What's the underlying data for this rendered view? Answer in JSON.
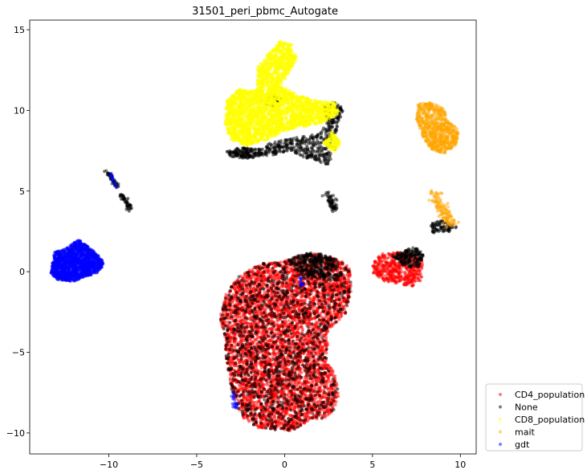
{
  "chart_data": {
    "type": "scatter",
    "title": "31501_peri_pbmc_Autogate",
    "xlabel": "",
    "ylabel": "",
    "xlim": [
      -14.5,
      10.9
    ],
    "ylim": [
      -11.3,
      15.6
    ],
    "xticks": [
      -10,
      -5,
      0,
      5,
      10
    ],
    "yticks": [
      -10,
      -5,
      0,
      5,
      10,
      15
    ],
    "xtick_labels": [
      "−10",
      "−5",
      "0",
      "5",
      "10"
    ],
    "ytick_labels": [
      "−10",
      "−5",
      "0",
      "5",
      "10",
      "15"
    ],
    "grid": false,
    "legend_position": "outside lower right",
    "series": [
      {
        "name": "CD4_population",
        "color": "#ff0000",
        "clusters": [
          {
            "shape": "polygon",
            "n": 5200,
            "poly": [
              [
                -3.7,
                -2.9
              ],
              [
                -3.3,
                -1.3
              ],
              [
                -2.6,
                -0.3
              ],
              [
                -1.4,
                0.5
              ],
              [
                -0.2,
                0.6
              ],
              [
                0.6,
                0.9
              ],
              [
                1.5,
                1.2
              ],
              [
                2.4,
                1.0
              ],
              [
                3.2,
                0.7
              ],
              [
                3.7,
                0.3
              ],
              [
                3.8,
                -1.2
              ],
              [
                3.5,
                -2.6
              ],
              [
                2.5,
                -3.6
              ],
              [
                2.4,
                -5.6
              ],
              [
                2.9,
                -6.4
              ],
              [
                3.1,
                -7.6
              ],
              [
                2.9,
                -8.5
              ],
              [
                2.3,
                -9.1
              ],
              [
                1.4,
                -9.2
              ],
              [
                0.4,
                -9.9
              ],
              [
                -1.5,
                -9.7
              ],
              [
                -2.4,
                -9.1
              ],
              [
                -3.0,
                -7.4
              ],
              [
                -3.3,
                -5.6
              ],
              [
                -3.4,
                -4.0
              ]
            ]
          },
          {
            "shape": "polygon",
            "n": 500,
            "poly": [
              [
                5.0,
                0.5
              ],
              [
                5.5,
                1.1
              ],
              [
                6.5,
                1.2
              ],
              [
                7.5,
                1.0
              ],
              [
                7.9,
                0.6
              ],
              [
                7.8,
                -0.5
              ],
              [
                7.3,
                -0.9
              ],
              [
                6.6,
                -0.8
              ],
              [
                5.7,
                -0.6
              ],
              [
                5.0,
                -0.1
              ]
            ]
          }
        ]
      },
      {
        "name": "None",
        "color": "#000000",
        "clusters": [
          {
            "shape": "polygon",
            "n": 1300,
            "poly": [
              [
                -3.7,
                -2.9
              ],
              [
                -3.3,
                -1.3
              ],
              [
                -2.6,
                -0.3
              ],
              [
                -1.4,
                0.5
              ],
              [
                -0.2,
                0.6
              ],
              [
                0.6,
                0.9
              ],
              [
                1.5,
                1.2
              ],
              [
                2.4,
                1.0
              ],
              [
                3.2,
                0.7
              ],
              [
                3.7,
                0.3
              ],
              [
                3.8,
                -1.2
              ],
              [
                3.5,
                -2.6
              ],
              [
                2.5,
                -3.6
              ],
              [
                2.4,
                -5.6
              ],
              [
                2.9,
                -6.4
              ],
              [
                3.1,
                -7.6
              ],
              [
                2.9,
                -8.5
              ],
              [
                2.3,
                -9.1
              ],
              [
                1.4,
                -9.2
              ],
              [
                0.4,
                -9.9
              ],
              [
                -1.5,
                -9.7
              ],
              [
                -2.4,
                -9.1
              ],
              [
                -3.0,
                -7.4
              ],
              [
                -3.3,
                -5.6
              ],
              [
                -3.4,
                -4.0
              ]
            ]
          },
          {
            "shape": "polygon",
            "n": 300,
            "poly": [
              [
                0.2,
                0.7
              ],
              [
                1.2,
                1.2
              ],
              [
                2.2,
                1.1
              ],
              [
                3.0,
                0.6
              ],
              [
                3.3,
                -0.2
              ],
              [
                2.4,
                -0.5
              ],
              [
                1.0,
                -0.2
              ]
            ]
          },
          {
            "shape": "polygon",
            "n": 180,
            "poly": [
              [
                6.0,
                1.0
              ],
              [
                6.8,
                1.3
              ],
              [
                7.5,
                1.6
              ],
              [
                7.9,
                1.0
              ],
              [
                7.6,
                0.2
              ],
              [
                6.9,
                0.3
              ]
            ]
          },
          {
            "shape": "polygon",
            "n": 380,
            "poly": [
              [
                -0.8,
                8.0
              ],
              [
                0.5,
                8.3
              ],
              [
                2.0,
                8.6
              ],
              [
                2.5,
                9.4
              ],
              [
                3.1,
                9.0
              ],
              [
                2.9,
                7.6
              ],
              [
                2.5,
                6.6
              ],
              [
                1.6,
                6.9
              ],
              [
                0.3,
                7.4
              ],
              [
                -0.9,
                7.1
              ],
              [
                -1.5,
                7.4
              ]
            ]
          },
          {
            "shape": "polygon",
            "n": 160,
            "poly": [
              [
                -3.4,
                7.4
              ],
              [
                -3.0,
                7.1
              ],
              [
                -2.2,
                7.0
              ],
              [
                -1.2,
                7.2
              ],
              [
                -1.4,
                7.6
              ],
              [
                -2.6,
                7.7
              ]
            ]
          },
          {
            "shape": "polygon",
            "n": 120,
            "poly": [
              [
                2.2,
                10.2
              ],
              [
                2.9,
                10.6
              ],
              [
                3.4,
                10.0
              ],
              [
                3.0,
                9.2
              ],
              [
                2.3,
                9.4
              ]
            ]
          },
          {
            "shape": "polygon",
            "n": 70,
            "poly": [
              [
                -1.3,
                10.6
              ],
              [
                -0.7,
                11.1
              ],
              [
                -0.2,
                10.7
              ],
              [
                -0.6,
                10.2
              ],
              [
                -1.1,
                10.3
              ]
            ]
          },
          {
            "shape": "line",
            "n": 60,
            "from": [
              2.5,
              4.7
            ],
            "to": [
              2.8,
              3.8
            ],
            "spread": 0.12
          },
          {
            "shape": "line",
            "n": 45,
            "from": [
              -10.1,
              6.2
            ],
            "to": [
              -9.5,
              5.3
            ],
            "spread": 0.06
          },
          {
            "shape": "line",
            "n": 50,
            "from": [
              -9.3,
              4.8
            ],
            "to": [
              -8.8,
              3.9
            ],
            "spread": 0.07
          },
          {
            "shape": "polygon",
            "n": 80,
            "poly": [
              [
                8.3,
                3.0
              ],
              [
                9.0,
                3.2
              ],
              [
                9.8,
                2.8
              ],
              [
                9.6,
                2.5
              ],
              [
                8.4,
                2.4
              ]
            ]
          }
        ]
      },
      {
        "name": "CD8_population",
        "color": "#ffff00",
        "clusters": [
          {
            "shape": "polygon",
            "n": 3800,
            "poly": [
              [
                -3.4,
                9.2
              ],
              [
                -3.3,
                10.6
              ],
              [
                -2.6,
                11.3
              ],
              [
                -1.6,
                11.2
              ],
              [
                -1.5,
                12.8
              ],
              [
                -0.9,
                13.5
              ],
              [
                -0.3,
                14.3
              ],
              [
                0.4,
                14.1
              ],
              [
                0.7,
                13.2
              ],
              [
                0.2,
                12.2
              ],
              [
                -0.2,
                11.6
              ],
              [
                0.8,
                10.9
              ],
              [
                1.8,
                10.6
              ],
              [
                2.9,
                10.5
              ],
              [
                3.1,
                9.8
              ],
              [
                2.3,
                9.3
              ],
              [
                1.2,
                9.0
              ],
              [
                0.3,
                8.8
              ],
              [
                -1.0,
                8.2
              ],
              [
                -2.2,
                7.8
              ],
              [
                -3.1,
                8.2
              ]
            ]
          },
          {
            "shape": "polygon",
            "n": 120,
            "poly": [
              [
                2.2,
                8.0
              ],
              [
                2.7,
                8.7
              ],
              [
                3.2,
                8.0
              ],
              [
                2.8,
                7.4
              ]
            ]
          }
        ]
      },
      {
        "name": "mait",
        "color": "#ffa500",
        "clusters": [
          {
            "shape": "polygon",
            "n": 700,
            "poly": [
              [
                7.6,
                10.4
              ],
              [
                8.3,
                10.5
              ],
              [
                9.0,
                10.2
              ],
              [
                9.3,
                9.4
              ],
              [
                9.9,
                8.8
              ],
              [
                9.8,
                7.9
              ],
              [
                9.1,
                7.3
              ],
              [
                8.3,
                7.6
              ],
              [
                7.8,
                8.5
              ],
              [
                7.5,
                9.5
              ]
            ]
          },
          {
            "shape": "line",
            "n": 120,
            "from": [
              8.5,
              4.8
            ],
            "to": [
              9.5,
              2.9
            ],
            "spread": 0.18
          }
        ]
      },
      {
        "name": "gdt",
        "color": "#0000ff",
        "clusters": [
          {
            "shape": "polygon",
            "n": 1500,
            "poly": [
              [
                -13.1,
                1.2
              ],
              [
                -12.5,
                1.4
              ],
              [
                -11.7,
                2.0
              ],
              [
                -11.0,
                1.4
              ],
              [
                -10.4,
                0.8
              ],
              [
                -10.3,
                0.4
              ],
              [
                -10.7,
                -0.1
              ],
              [
                -11.3,
                -0.3
              ],
              [
                -12.0,
                -0.6
              ],
              [
                -12.9,
                -0.5
              ],
              [
                -13.3,
                -0.1
              ],
              [
                -13.2,
                0.6
              ]
            ]
          },
          {
            "shape": "line",
            "n": 20,
            "from": [
              -2.9,
              -7.5
            ],
            "to": [
              -2.8,
              -8.5
            ],
            "spread": 0.06
          },
          {
            "shape": "line",
            "n": 15,
            "from": [
              -9.9,
              6.1
            ],
            "to": [
              -9.6,
              5.2
            ],
            "spread": 0.03
          },
          {
            "shape": "line",
            "n": 12,
            "from": [
              0.9,
              -0.2
            ],
            "to": [
              1.0,
              -0.9
            ],
            "spread": 0.05
          }
        ]
      }
    ]
  }
}
